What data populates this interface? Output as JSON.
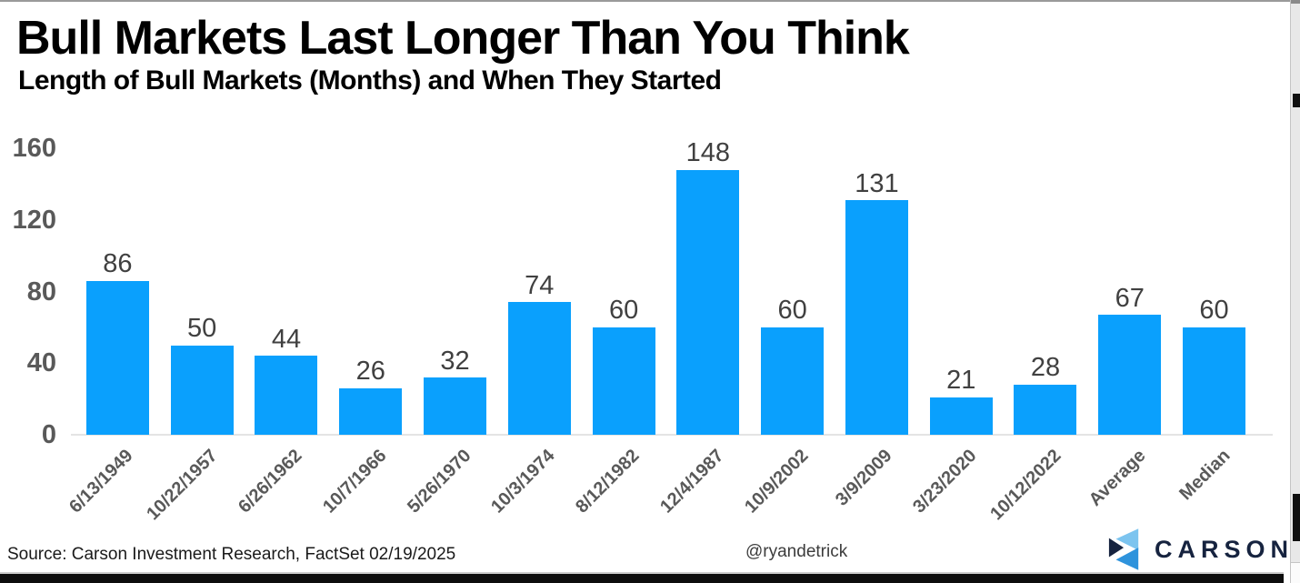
{
  "header": {
    "title": "Bull Markets Last Longer Than You Think",
    "subtitle": "Length of Bull Markets (Months) and When They Started"
  },
  "chart_data": {
    "type": "bar",
    "title": "Bull Markets Last Longer Than You Think",
    "subtitle": "Length of Bull Markets (Months) and When They Started",
    "categories": [
      "6/13/1949",
      "10/22/1957",
      "6/26/1962",
      "10/7/1966",
      "5/26/1970",
      "10/3/1974",
      "8/12/1982",
      "12/4/1987",
      "10/9/2002",
      "3/9/2009",
      "3/23/2020",
      "10/12/2022",
      "Average",
      "Median"
    ],
    "values": [
      86,
      50,
      44,
      26,
      32,
      74,
      60,
      148,
      60,
      131,
      21,
      28,
      67,
      60
    ],
    "xlabel": "",
    "ylabel": "",
    "ylim": [
      0,
      160
    ],
    "yticks": [
      0,
      40,
      80,
      120,
      160
    ],
    "grid": false,
    "legend": "none",
    "value_labels_shown": true,
    "bar_color": "#0aa0fd",
    "axis_label_color": "#595959",
    "value_label_color": "#404040"
  },
  "footer": {
    "source": "Source: Carson Investment Research, FactSet 02/19/2025",
    "handle": "@ryandetrick",
    "brand_name": "CARSON"
  },
  "brand_colors": {
    "navy": "#16233f",
    "light_blue": "#7cc4ef",
    "mid_blue": "#2e93dc"
  }
}
